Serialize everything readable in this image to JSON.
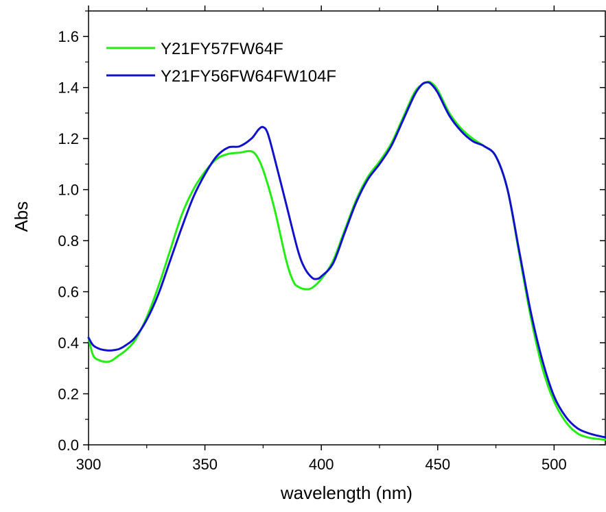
{
  "chart_data": {
    "type": "line",
    "title": "",
    "xlabel": "wavelength (nm)",
    "ylabel": "Abs",
    "xlim": [
      300,
      522
    ],
    "ylim": [
      0.0,
      1.7
    ],
    "xticks": [
      300,
      350,
      400,
      450,
      500
    ],
    "xtick_labels": [
      "300",
      "350",
      "400",
      "450",
      "500"
    ],
    "yticks": [
      0.0,
      0.2,
      0.4,
      0.6,
      0.8,
      1.0,
      1.2,
      1.4,
      1.6
    ],
    "ytick_labels": [
      "0.0",
      "0.2",
      "0.4",
      "0.6",
      "0.8",
      "1.0",
      "1.2",
      "1.4",
      "1.6"
    ],
    "grid": false,
    "legend_position": "top-left",
    "series": [
      {
        "name": "Y21FY57FW64F",
        "color": "#22ee11",
        "x": [
          300,
          302,
          305,
          308,
          310,
          313,
          316,
          320,
          325,
          330,
          335,
          340,
          345,
          350,
          355,
          360,
          365,
          370,
          373,
          376,
          380,
          385,
          388,
          390,
          393,
          396,
          400,
          405,
          410,
          415,
          420,
          425,
          430,
          435,
          440,
          443,
          445,
          447,
          450,
          455,
          460,
          465,
          470,
          475,
          480,
          485,
          490,
          495,
          500,
          505,
          510,
          515,
          520,
          522
        ],
        "y": [
          0.42,
          0.35,
          0.33,
          0.325,
          0.33,
          0.35,
          0.37,
          0.41,
          0.5,
          0.62,
          0.76,
          0.9,
          1.0,
          1.07,
          1.12,
          1.14,
          1.145,
          1.15,
          1.12,
          1.05,
          0.92,
          0.72,
          0.64,
          0.62,
          0.61,
          0.615,
          0.65,
          0.72,
          0.84,
          0.96,
          1.05,
          1.11,
          1.18,
          1.28,
          1.38,
          1.41,
          1.42,
          1.42,
          1.39,
          1.3,
          1.24,
          1.2,
          1.17,
          1.13,
          1.0,
          0.75,
          0.5,
          0.3,
          0.17,
          0.09,
          0.045,
          0.028,
          0.022,
          0.02
        ]
      },
      {
        "name": "Y21FY56FW64FW104F",
        "color": "#1111cc",
        "x": [
          300,
          302,
          305,
          308,
          310,
          313,
          316,
          320,
          325,
          330,
          335,
          340,
          345,
          350,
          355,
          360,
          365,
          370,
          373,
          375,
          377,
          380,
          385,
          390,
          393,
          396,
          398,
          400,
          405,
          410,
          415,
          420,
          425,
          430,
          435,
          440,
          443,
          445,
          447,
          450,
          455,
          460,
          465,
          470,
          475,
          480,
          485,
          490,
          495,
          500,
          505,
          510,
          515,
          520,
          522
        ],
        "y": [
          0.42,
          0.39,
          0.375,
          0.37,
          0.37,
          0.375,
          0.39,
          0.42,
          0.49,
          0.59,
          0.72,
          0.85,
          0.97,
          1.06,
          1.13,
          1.165,
          1.17,
          1.2,
          1.235,
          1.245,
          1.22,
          1.12,
          0.94,
          0.76,
          0.69,
          0.655,
          0.65,
          0.66,
          0.71,
          0.83,
          0.95,
          1.04,
          1.1,
          1.17,
          1.27,
          1.37,
          1.41,
          1.42,
          1.415,
          1.38,
          1.29,
          1.23,
          1.19,
          1.17,
          1.13,
          1.0,
          0.76,
          0.52,
          0.33,
          0.19,
          0.11,
          0.065,
          0.045,
          0.033,
          0.03
        ]
      }
    ]
  }
}
